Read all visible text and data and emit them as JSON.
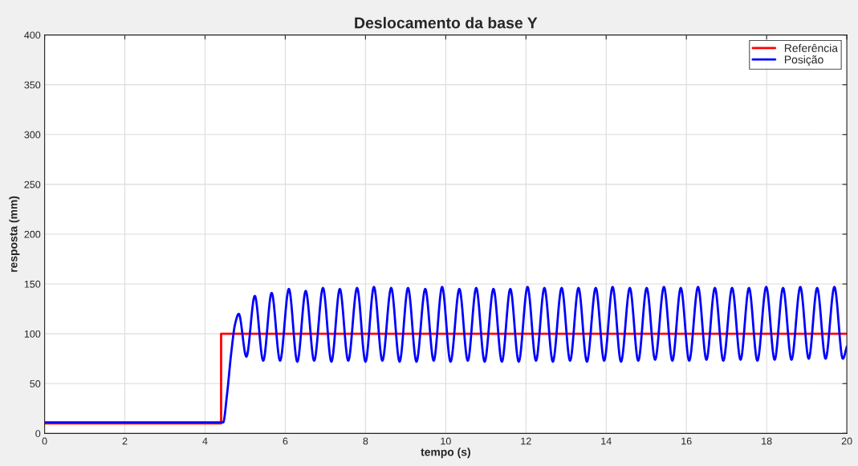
{
  "chart_data": {
    "type": "line",
    "title": "Deslocamento da base Y",
    "xlabel": "tempo (s)",
    "ylabel": "resposta (mm)",
    "xlim": [
      0,
      20
    ],
    "xticks": [
      0,
      2,
      4,
      6,
      8,
      10,
      12,
      14,
      16,
      18,
      20
    ],
    "ylim": [
      0,
      400
    ],
    "yticks": [
      0,
      50,
      100,
      150,
      200,
      250,
      300,
      350,
      400
    ],
    "grid": true,
    "legend": "top right",
    "line_style": "solid",
    "series": [
      {
        "name": "Referência",
        "color": "#ff0000",
        "x": [
          0,
          4.4,
          4.4,
          20
        ],
        "values": [
          10,
          10,
          100,
          100
        ]
      },
      {
        "name": "Posição",
        "color": "#0000ff",
        "x": [
          0,
          1,
          2,
          3,
          4,
          4.45,
          4.55,
          4.65,
          4.75,
          4.84,
          5.03,
          5.24,
          5.45,
          5.66,
          5.87,
          6.09,
          6.3,
          6.51,
          6.72,
          6.94,
          7.15,
          7.36,
          7.57,
          7.79,
          8.0,
          8.21,
          8.42,
          8.64,
          8.85,
          9.06,
          9.27,
          9.49,
          9.7,
          9.91,
          10.12,
          10.34,
          10.55,
          10.76,
          10.97,
          11.19,
          11.4,
          11.61,
          11.82,
          12.04,
          12.25,
          12.46,
          12.67,
          12.89,
          13.1,
          13.31,
          13.52,
          13.74,
          13.95,
          14.16,
          14.37,
          14.59,
          14.8,
          15.01,
          15.22,
          15.44,
          15.65,
          15.86,
          16.07,
          16.29,
          16.5,
          16.71,
          16.92,
          17.14,
          17.35,
          17.56,
          17.77,
          17.99,
          18.2,
          18.41,
          18.62,
          18.84,
          19.05,
          19.26,
          19.47,
          19.69,
          19.9,
          20
        ],
        "values": [
          11,
          11,
          11,
          11,
          11,
          11,
          40,
          80,
          110,
          120,
          77,
          138,
          73,
          141,
          73,
          145,
          72,
          143,
          73,
          146,
          72,
          145,
          73,
          146,
          72,
          147,
          73,
          146,
          72,
          146,
          72,
          145,
          73,
          147,
          72,
          145,
          73,
          146,
          72,
          145,
          72,
          145,
          72,
          147,
          73,
          146,
          72,
          146,
          73,
          146,
          72,
          146,
          73,
          147,
          72,
          146,
          73,
          146,
          74,
          147,
          73,
          146,
          73,
          147,
          74,
          146,
          73,
          146,
          74,
          146,
          73,
          147,
          74,
          146,
          74,
          147,
          75,
          146,
          75,
          147,
          75,
          87
        ]
      }
    ]
  }
}
